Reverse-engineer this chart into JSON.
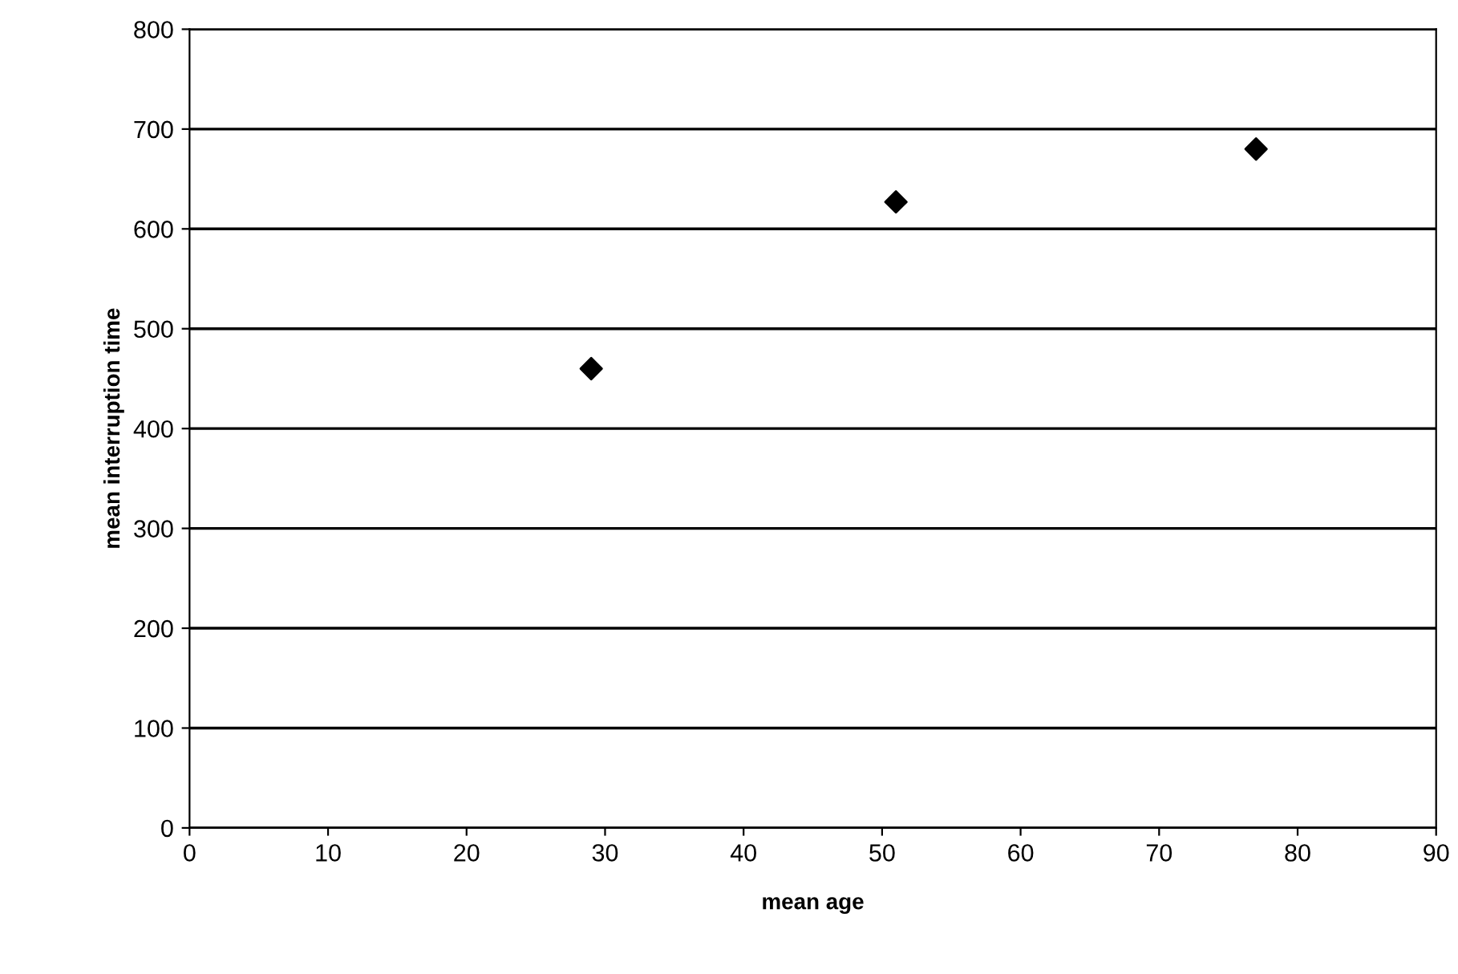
{
  "chart_data": {
    "type": "scatter",
    "xlabel": "mean age",
    "ylabel": "mean interruption time",
    "x": [
      29,
      51,
      77
    ],
    "values": [
      460,
      627,
      680
    ],
    "color": "#000000",
    "marker": "diamond",
    "xlim": [
      0,
      90
    ],
    "xticks": [
      0,
      10,
      20,
      30,
      40,
      50,
      60,
      70,
      80,
      90
    ],
    "ylim": [
      0,
      800
    ],
    "yticks": [
      0,
      100,
      200,
      300,
      400,
      500,
      600,
      700,
      800
    ],
    "grid": "y",
    "legend": false
  }
}
